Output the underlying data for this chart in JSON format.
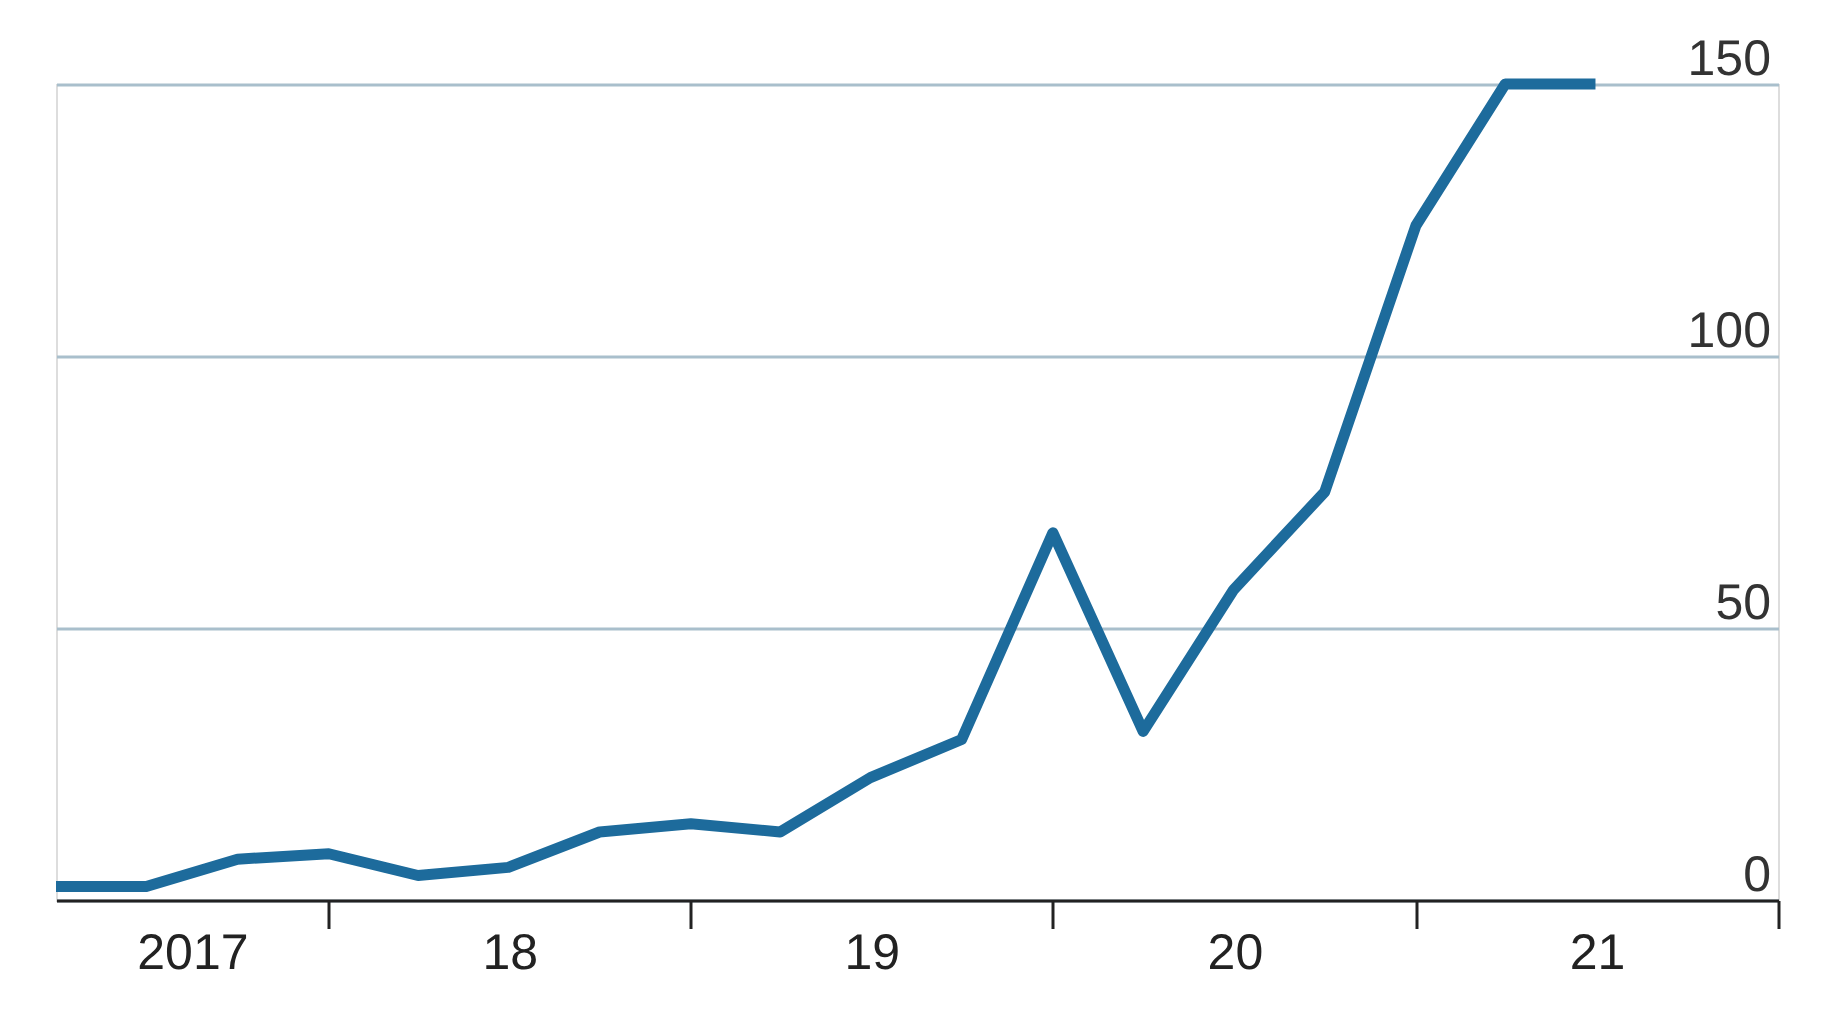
{
  "chart_data": {
    "type": "line",
    "x": [
      "2017-04-01",
      "2017-07-01",
      "2017-10-01",
      "2018-01-01",
      "2018-04-01",
      "2018-07-01",
      "2018-10-01",
      "2019-01-01",
      "2019-04-01",
      "2019-07-01",
      "2019-10-01",
      "2020-01-01",
      "2020-04-01",
      "2020-07-01",
      "2020-10-01",
      "2021-01-01",
      "2021-04-01",
      "2021-07-01"
    ],
    "series": [
      {
        "color": "#1d6b9c",
        "values": [
          2.5,
          2.5,
          7.5,
          8.5,
          4.5,
          6,
          12.5,
          14,
          12.5,
          22.5,
          29.5,
          67.5,
          31,
          57,
          75,
          124,
          150,
          150
        ]
      }
    ],
    "xlim": [
      "2017-04-01",
      "2022-01-01"
    ],
    "xticks": [
      {
        "value": "2018-01-01",
        "label": null
      },
      {
        "value": "2019-01-01",
        "label": null
      },
      {
        "value": "2020-01-01",
        "label": null
      },
      {
        "value": "2021-01-01",
        "label": null
      },
      {
        "value": "2022-01-01",
        "label": null
      },
      {
        "value": "2017-08-16",
        "label": "2017"
      },
      {
        "value": "2018-07-02",
        "label": "18"
      },
      {
        "value": "2019-07-02",
        "label": "19"
      },
      {
        "value": "2020-07-02",
        "label": "20"
      },
      {
        "value": "2021-07-02",
        "label": "21"
      }
    ],
    "ylim": [
      0,
      150
    ],
    "yticks": [
      0,
      50,
      100,
      150
    ],
    "grid": "y",
    "line_style": "solid",
    "marker": "none"
  }
}
